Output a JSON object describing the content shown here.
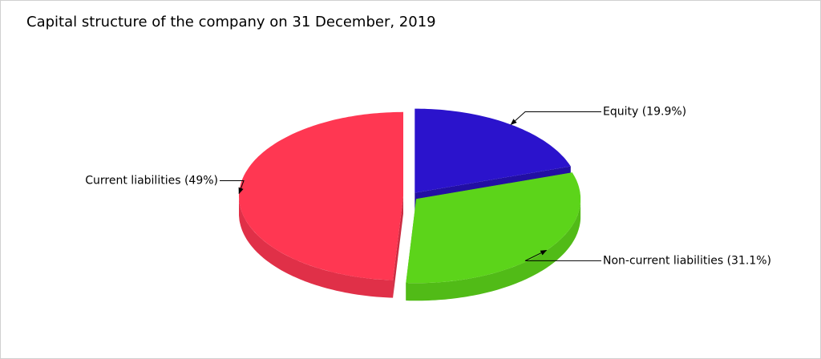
{
  "chart_data": {
    "type": "pie3d",
    "title": "Capital structure of the company on 31 December, 2019",
    "values": [
      19.9,
      31.1,
      49
    ],
    "value_labels": [
      "Equity (19.9%)",
      "Non-current liabilities (31.1%)",
      "Current liabilities (49%)"
    ],
    "colors": [
      "#2b13cc",
      "#5cd41a",
      "#ff3752"
    ]
  }
}
